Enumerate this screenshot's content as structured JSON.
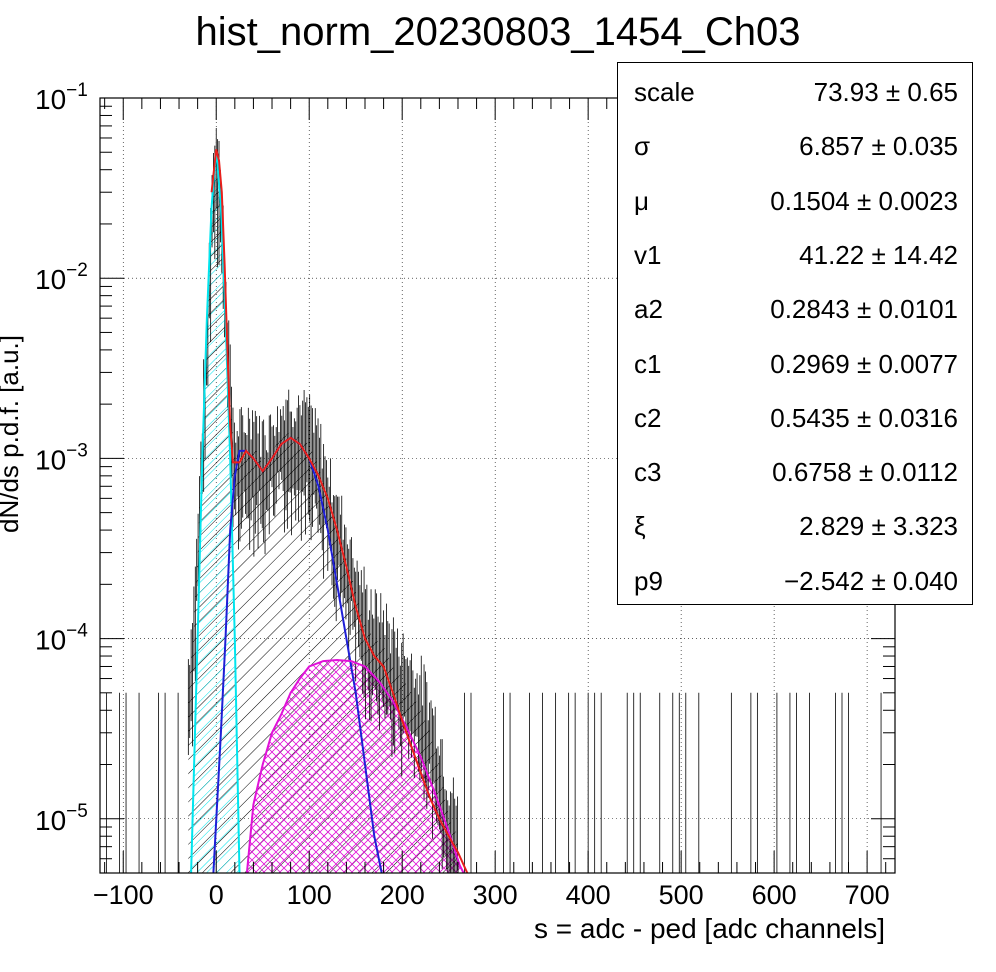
{
  "chart_data": {
    "type": "histogram",
    "title": "hist_norm_20230803_1454_Ch03",
    "xlabel": "s = adc - ped [adc channels]",
    "ylabel": "dN/ds p.d.f. [a.u.]",
    "xlim": [
      -125,
      730
    ],
    "ylim": [
      5e-06,
      0.1
    ],
    "yscale": "log",
    "grid": true,
    "x_ticks": [
      -100,
      0,
      100,
      200,
      300,
      400,
      500,
      600,
      700
    ],
    "x_tick_labels": [
      "−100",
      "0",
      "100",
      "200",
      "300",
      "400",
      "500",
      "600",
      "700"
    ],
    "y_ticks": [
      {
        "value": 0.1,
        "base": "10",
        "exp": "−1"
      },
      {
        "value": 0.01,
        "base": "10",
        "exp": "−2"
      },
      {
        "value": 0.001,
        "base": "10",
        "exp": "−3"
      },
      {
        "value": 0.0001,
        "base": "10",
        "exp": "−4"
      },
      {
        "value": 1e-05,
        "base": "10",
        "exp": "−5"
      }
    ],
    "stats": [
      {
        "name": "scale",
        "value": "73.93 ± 0.65"
      },
      {
        "name": "σ",
        "value": "6.857 ± 0.035"
      },
      {
        "name": "μ",
        "value": "0.1504 ± 0.0023"
      },
      {
        "name": "v1",
        "value": "41.22 ± 14.42"
      },
      {
        "name": "a2",
        "value": "0.2843 ± 0.0101"
      },
      {
        "name": "c1",
        "value": "0.2969 ± 0.0077"
      },
      {
        "name": "c2",
        "value": "0.5435 ± 0.0316"
      },
      {
        "name": "c3",
        "value": "0.6758 ± 0.0112"
      },
      {
        "name": "ξ",
        "value": "2.829 ± 3.323"
      },
      {
        "name": "p9",
        "value": "−2.542 ± 0.040"
      }
    ],
    "series": [
      {
        "role": "data",
        "color": "#000000",
        "points": [
          [
            -30,
            5e-05
          ],
          [
            -25,
            0.0001
          ],
          [
            -20,
            0.0003
          ],
          [
            -15,
            0.0012
          ],
          [
            -10,
            0.004
          ],
          [
            -5,
            0.025
          ],
          [
            0,
            0.05
          ],
          [
            3,
            0.04
          ],
          [
            6,
            0.02
          ],
          [
            10,
            0.008
          ],
          [
            14,
            0.003
          ],
          [
            18,
            0.0012
          ],
          [
            22,
            0.0009
          ],
          [
            30,
            0.001
          ],
          [
            40,
            0.0012
          ],
          [
            50,
            0.0009
          ],
          [
            60,
            0.0011
          ],
          [
            70,
            0.0013
          ],
          [
            80,
            0.0014
          ],
          [
            90,
            0.0013
          ],
          [
            100,
            0.0012
          ],
          [
            110,
            0.0009
          ],
          [
            120,
            0.0006
          ],
          [
            130,
            0.0004
          ],
          [
            140,
            0.00028
          ],
          [
            150,
            0.00018
          ],
          [
            160,
            0.00012
          ],
          [
            170,
            0.0001
          ],
          [
            180,
            9e-05
          ],
          [
            190,
            7e-05
          ],
          [
            200,
            6e-05
          ],
          [
            210,
            5e-05
          ],
          [
            220,
            4e-05
          ],
          [
            230,
            3e-05
          ],
          [
            240,
            2e-05
          ],
          [
            250,
            1e-05
          ],
          [
            260,
            8e-06
          ]
        ]
      },
      {
        "role": "total-fit",
        "color": "#e8201c",
        "points": [
          [
            -5,
            0.03
          ],
          [
            0,
            0.052
          ],
          [
            3,
            0.045
          ],
          [
            6,
            0.03
          ],
          [
            9,
            0.012
          ],
          [
            12,
            0.004
          ],
          [
            15,
            0.0015
          ],
          [
            18,
            0.00095
          ],
          [
            25,
            0.00095
          ],
          [
            32,
            0.0011
          ],
          [
            40,
            0.001
          ],
          [
            50,
            0.00085
          ],
          [
            60,
            0.001
          ],
          [
            70,
            0.0012
          ],
          [
            80,
            0.0013
          ],
          [
            90,
            0.0012
          ],
          [
            100,
            0.001
          ],
          [
            110,
            0.0008
          ],
          [
            120,
            0.0006
          ],
          [
            130,
            0.0004
          ],
          [
            140,
            0.00025
          ],
          [
            150,
            0.00015
          ],
          [
            160,
            0.0001
          ],
          [
            170,
            8e-05
          ],
          [
            180,
            7e-05
          ],
          [
            190,
            5e-05
          ],
          [
            200,
            3.5e-05
          ],
          [
            210,
            2.5e-05
          ],
          [
            220,
            1.8e-05
          ],
          [
            230,
            1.3e-05
          ],
          [
            240,
            1e-05
          ],
          [
            250,
            8e-06
          ],
          [
            260,
            6.5e-06
          ],
          [
            270,
            5e-06
          ]
        ]
      },
      {
        "role": "pedestal",
        "color": "#00e5ee",
        "points": [
          [
            -27,
            5e-06
          ],
          [
            -20,
            0.0001
          ],
          [
            -15,
            0.001
          ],
          [
            -10,
            0.006
          ],
          [
            -5,
            0.025
          ],
          [
            0,
            0.052
          ],
          [
            5,
            0.025
          ],
          [
            10,
            0.006
          ],
          [
            15,
            0.001
          ],
          [
            20,
            0.0001
          ],
          [
            25,
            5e-06
          ]
        ]
      },
      {
        "role": "single-photoelectron",
        "color": "#1f1fd6",
        "points": [
          [
            -3,
            5e-06
          ],
          [
            5,
            3e-05
          ],
          [
            10,
            0.0001
          ],
          [
            15,
            0.0004
          ],
          [
            20,
            0.0008
          ],
          [
            25,
            0.0011
          ],
          [
            32,
            0.0011
          ],
          [
            40,
            0.001
          ],
          [
            50,
            0.00085
          ],
          [
            60,
            0.001
          ],
          [
            70,
            0.0012
          ],
          [
            80,
            0.0013
          ],
          [
            90,
            0.0012
          ],
          [
            100,
            0.001
          ],
          [
            110,
            0.0007
          ],
          [
            120,
            0.0004
          ],
          [
            130,
            0.0002
          ],
          [
            140,
            0.0001
          ],
          [
            150,
            5e-05
          ],
          [
            160,
            2e-05
          ],
          [
            170,
            8e-06
          ],
          [
            178,
            5e-06
          ]
        ]
      },
      {
        "role": "multi-photoelectron",
        "color": "#e012d8",
        "points": [
          [
            33,
            5e-06
          ],
          [
            40,
            1.2e-05
          ],
          [
            50,
            2e-05
          ],
          [
            60,
            3e-05
          ],
          [
            70,
            3.8e-05
          ],
          [
            80,
            5e-05
          ],
          [
            90,
            6e-05
          ],
          [
            100,
            7e-05
          ],
          [
            115,
            7.5e-05
          ],
          [
            130,
            7.6e-05
          ],
          [
            145,
            7.5e-05
          ],
          [
            160,
            7e-05
          ],
          [
            175,
            5.8e-05
          ],
          [
            190,
            4.5e-05
          ],
          [
            205,
            3.2e-05
          ],
          [
            220,
            2.2e-05
          ],
          [
            235,
            1.4e-05
          ],
          [
            250,
            8.5e-06
          ],
          [
            262,
            5.5e-06
          ],
          [
            266,
            5e-06
          ]
        ]
      }
    ]
  }
}
